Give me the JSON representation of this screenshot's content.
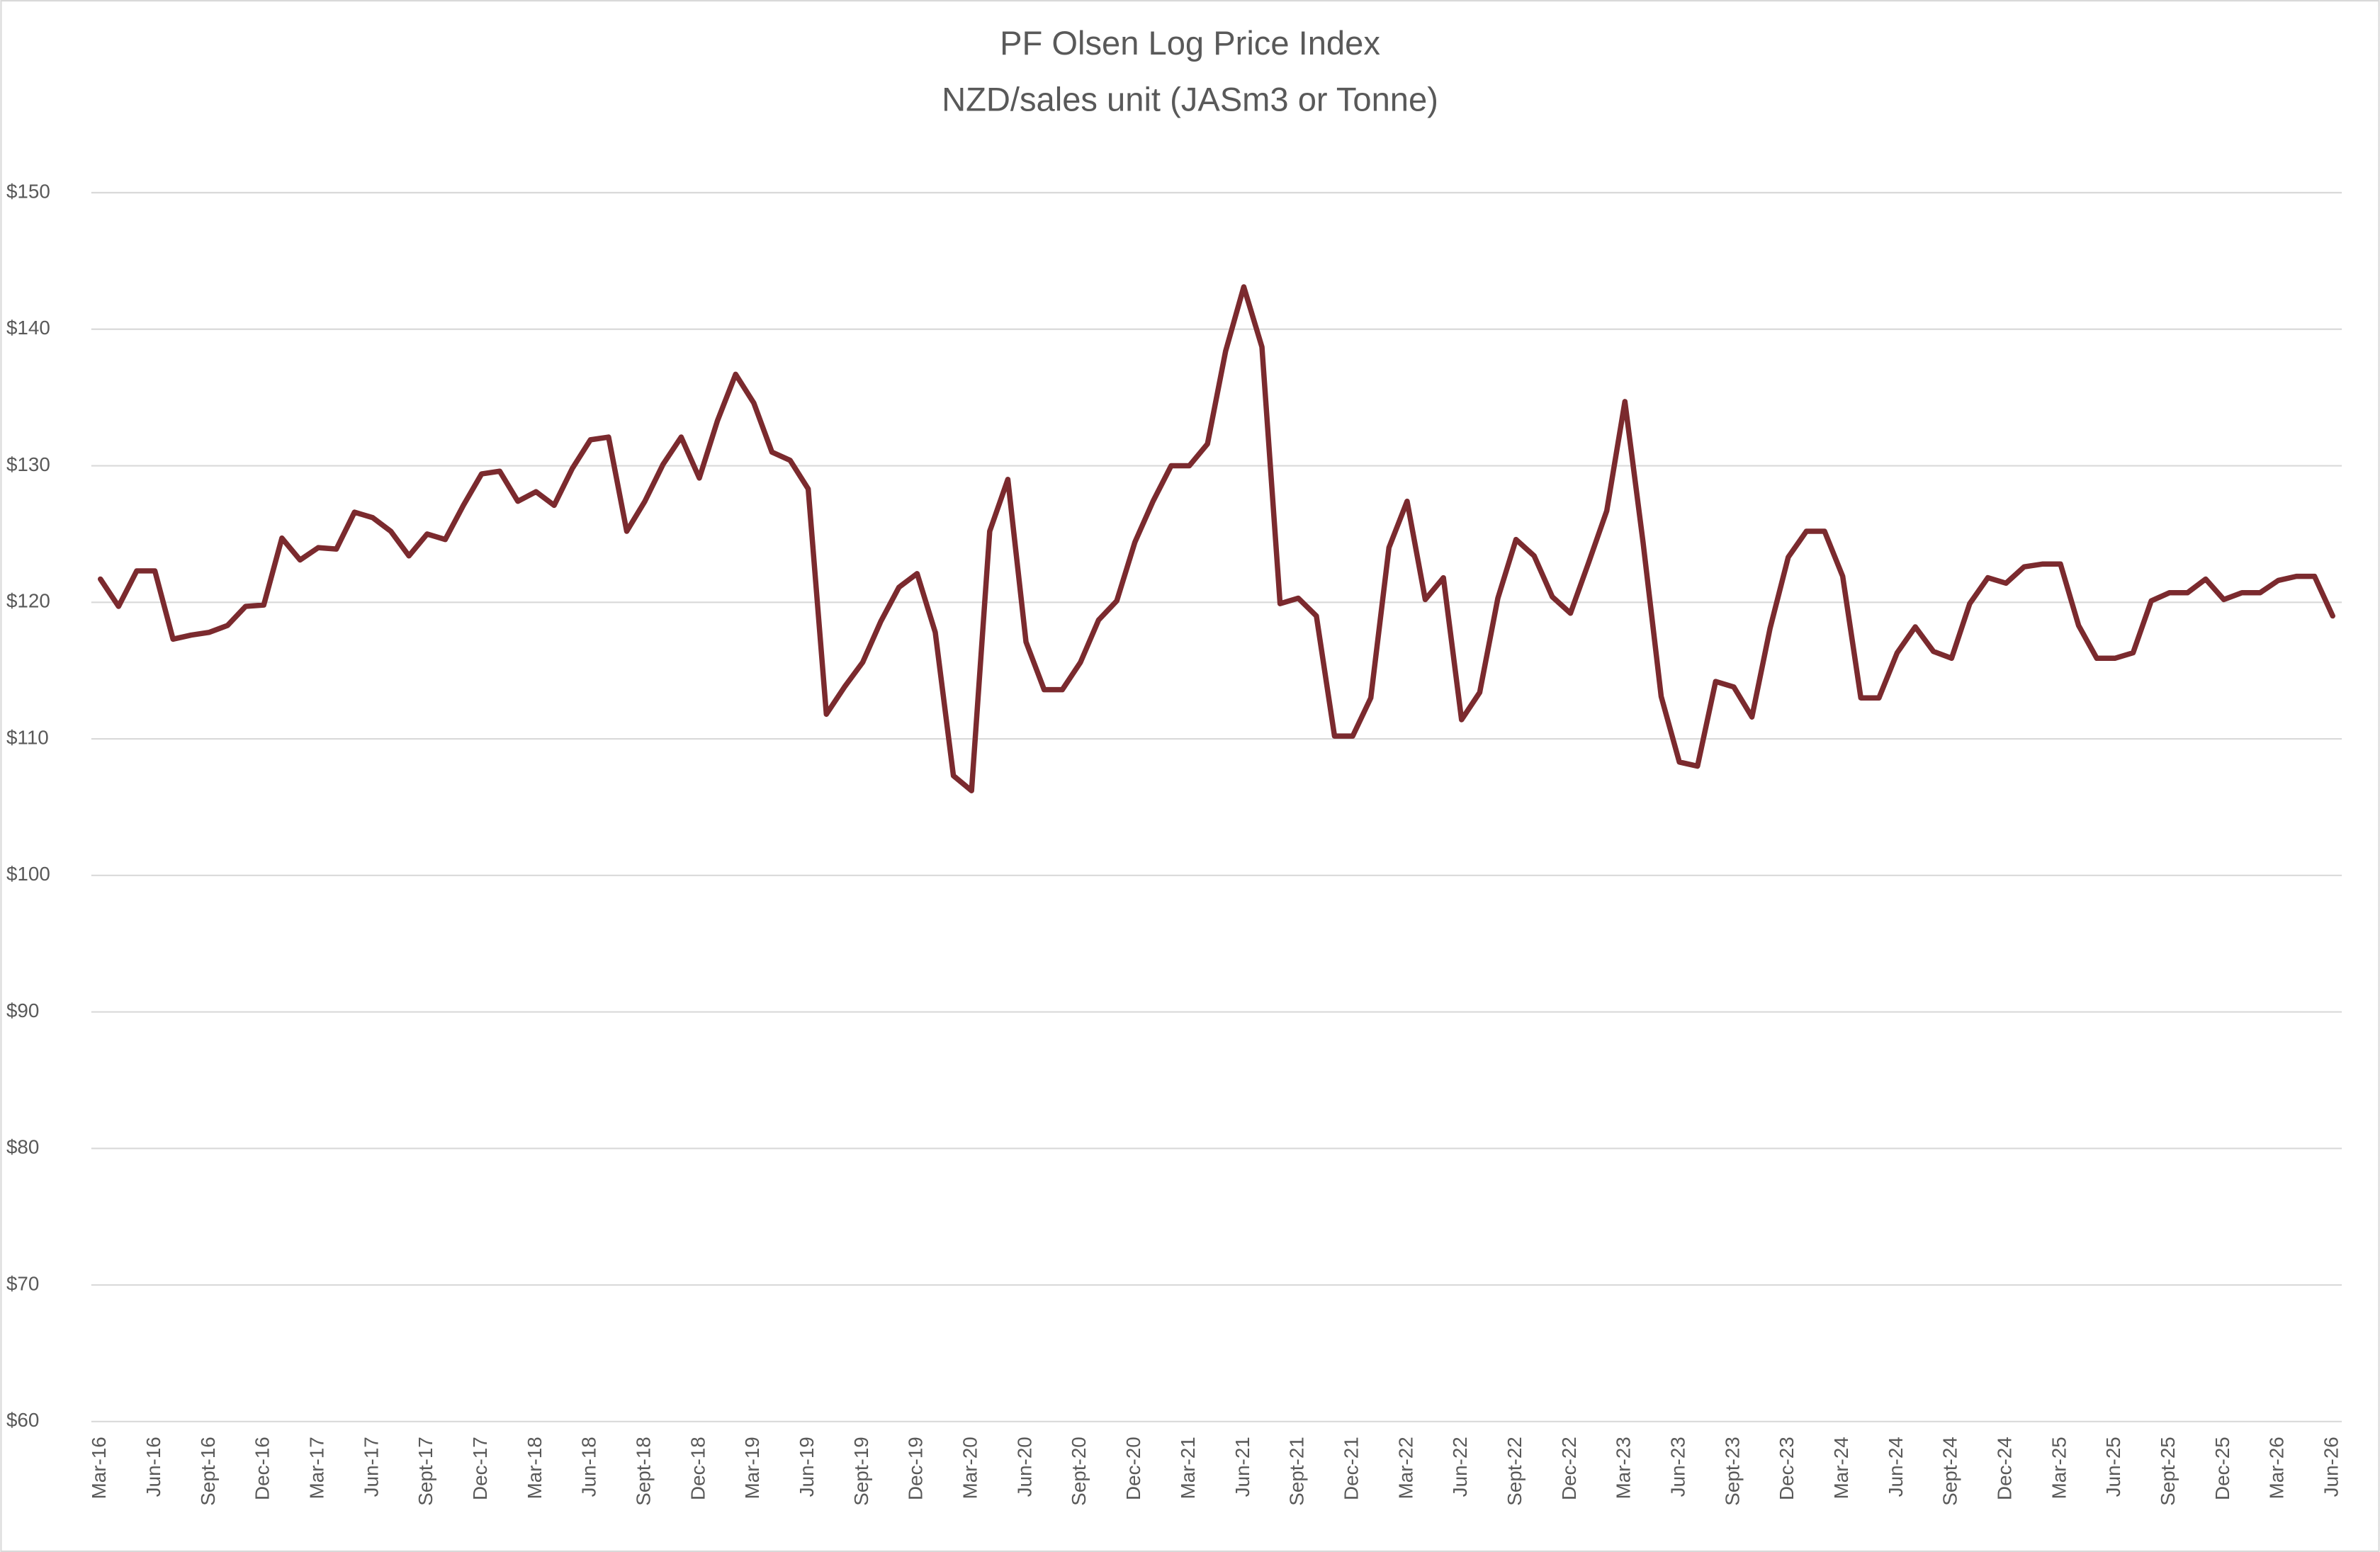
{
  "chart_data": {
    "type": "line",
    "title": "PF Olsen Log Price Index",
    "subtitle": "NZD/sales unit (JASm3 or Tonne)",
    "color": "#7b2a2e",
    "grid": true,
    "categories": [
      "Mar-16",
      null,
      null,
      "Jun-16",
      null,
      null,
      "Sept-16",
      null,
      null,
      "Dec-16",
      null,
      null,
      "Mar-17",
      null,
      null,
      "Jun-17",
      null,
      null,
      "Sept-17",
      null,
      null,
      "Dec-17",
      null,
      null,
      "Mar-18",
      null,
      null,
      "Jun-18",
      null,
      null,
      "Sept-18",
      null,
      null,
      "Dec-18",
      null,
      null,
      "Mar-19",
      null,
      null,
      "Jun-19",
      null,
      null,
      "Sept-19",
      null,
      null,
      "Dec-19",
      null,
      null,
      "Mar-20",
      null,
      null,
      "Jun-20",
      null,
      null,
      "Sept-20",
      null,
      null,
      "Dec-20",
      null,
      null,
      "Mar-21",
      null,
      null,
      "Jun-21",
      null,
      null,
      "Sept-21",
      null,
      null,
      "Dec-21",
      null,
      null,
      "Mar-22",
      null,
      null,
      "Jun-22",
      null,
      null,
      "Sept-22",
      null,
      null,
      "Dec-22",
      null,
      null,
      "Mar-23",
      null,
      null,
      "Jun-23",
      null,
      null,
      "Sept-23",
      null,
      null,
      "Dec-23",
      null,
      null,
      "Mar-24",
      null,
      null,
      "Jun-24",
      null,
      null,
      "Sept-24",
      null,
      null,
      "Dec-24",
      null,
      null,
      "Mar-25",
      null,
      null,
      "Jun-25",
      null,
      null,
      "Sept-25",
      null,
      null,
      "Dec-25",
      null,
      null,
      "Mar-26",
      null,
      null,
      "Jun-26"
    ],
    "values": [
      121.7,
      119.7,
      122.3,
      122.3,
      117.3,
      117.6,
      117.8,
      118.3,
      119.7,
      119.8,
      124.7,
      123.1,
      124.0,
      123.9,
      126.6,
      126.2,
      125.2,
      123.4,
      125.0,
      124.6,
      127.1,
      129.4,
      129.6,
      127.4,
      128.1,
      127.1,
      129.8,
      131.9,
      132.1,
      125.2,
      127.4,
      130.1,
      132.1,
      129.1,
      133.3,
      136.7,
      134.6,
      131.0,
      130.4,
      128.3,
      111.8,
      113.8,
      115.6,
      118.6,
      121.1,
      122.1,
      117.8,
      107.3,
      106.2,
      125.2,
      129.0,
      117.1,
      113.6,
      113.6,
      115.6,
      118.7,
      120.1,
      124.4,
      127.4,
      130.0,
      130.0,
      131.6,
      138.4,
      143.1,
      138.7,
      119.9,
      120.3,
      119.0,
      110.2,
      110.2,
      113.0,
      124.0,
      127.4,
      120.2,
      121.8,
      111.4,
      113.4,
      120.3,
      124.6,
      123.4,
      120.4,
      119.2,
      122.9,
      126.7,
      134.7,
      124.4,
      113.1,
      108.3,
      108.0,
      114.2,
      113.8,
      111.6,
      118.1,
      123.3,
      125.2,
      125.2,
      121.9,
      113.0,
      113.0,
      116.3,
      118.2,
      116.4,
      115.9,
      119.9,
      121.8,
      121.4,
      122.6,
      122.8,
      122.8,
      118.3,
      115.9,
      115.9,
      116.3,
      120.1,
      120.7,
      120.7,
      121.7,
      120.2,
      120.7,
      120.7,
      121.6,
      121.9,
      121.9,
      119.0
    ],
    "ylim": [
      60,
      150
    ],
    "yticks": [
      {
        "value": 60,
        "label": "$60"
      },
      {
        "value": 70,
        "label": "$70"
      },
      {
        "value": 80,
        "label": "$80"
      },
      {
        "value": 90,
        "label": "$90"
      },
      {
        "value": 100,
        "label": "$100"
      },
      {
        "value": 110,
        "label": "$110"
      },
      {
        "value": 120,
        "label": "$120"
      },
      {
        "value": 130,
        "label": "$130"
      },
      {
        "value": 140,
        "label": "$140"
      },
      {
        "value": 150,
        "label": "$150"
      }
    ]
  }
}
